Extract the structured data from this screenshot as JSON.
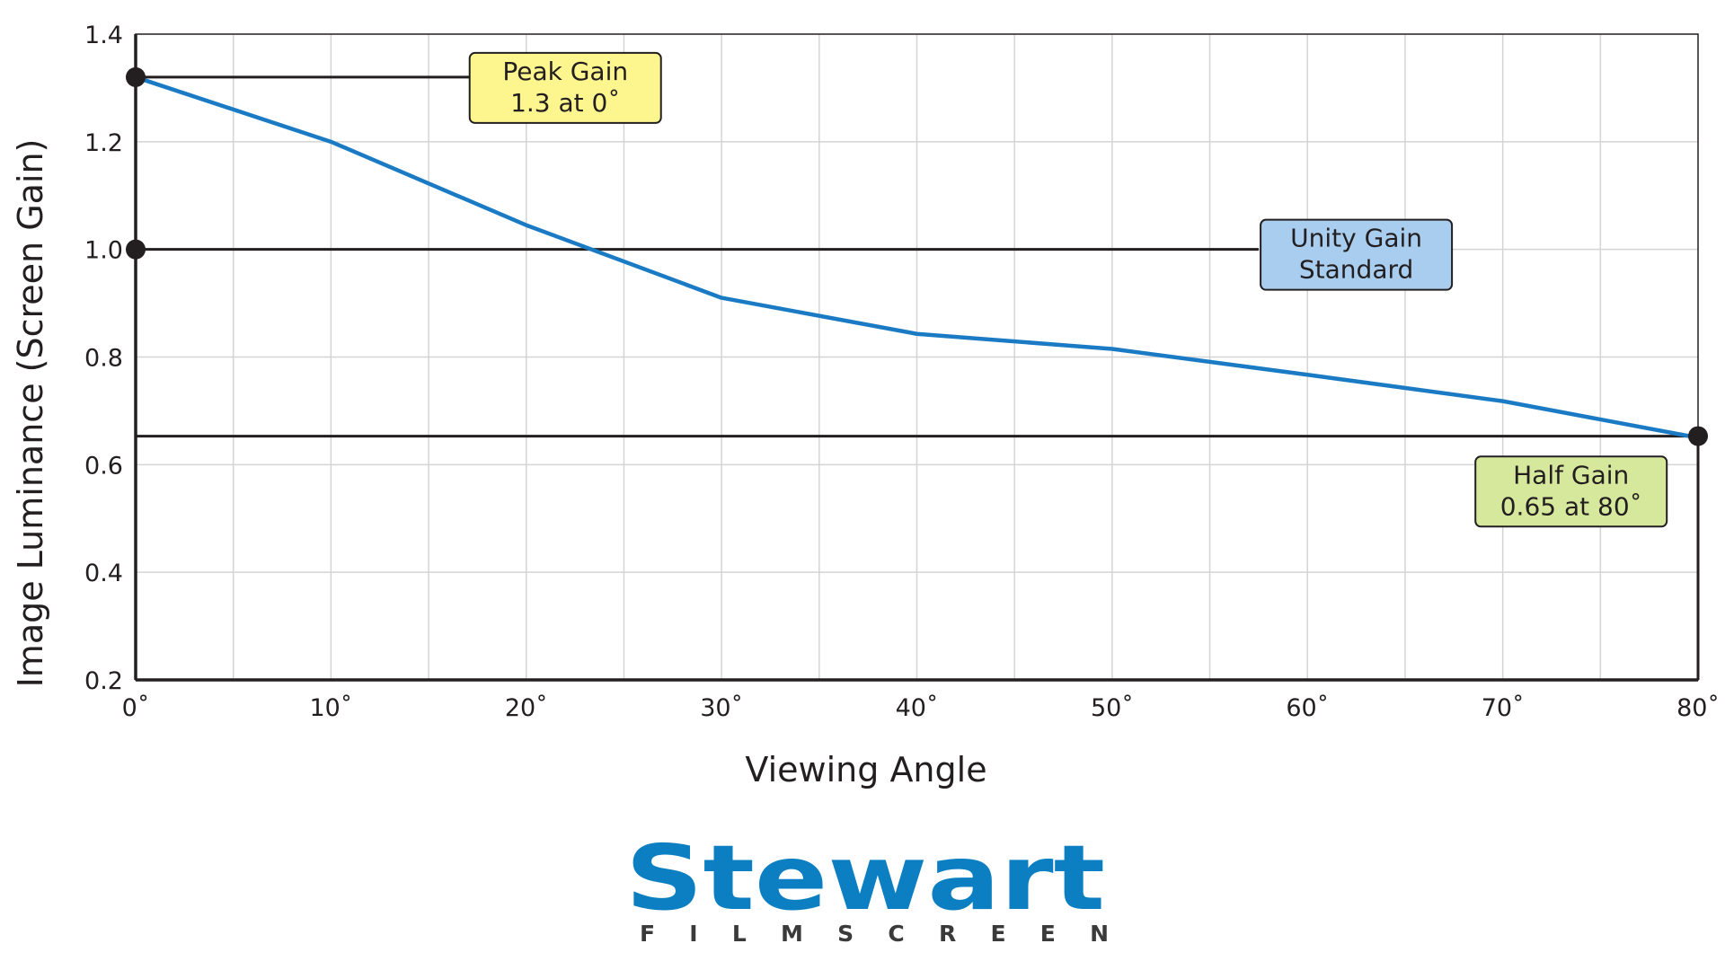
{
  "chart_data": {
    "type": "line",
    "xlabel": "Viewing Angle",
    "ylabel": "Image Luminance (Screen Gain)",
    "xlim": [
      0,
      80
    ],
    "ylim": [
      0.2,
      1.4
    ],
    "x_ticks": [
      {
        "value": 0,
        "label": "0˚"
      },
      {
        "value": 10,
        "label": "10˚"
      },
      {
        "value": 20,
        "label": "20˚"
      },
      {
        "value": 30,
        "label": "30˚"
      },
      {
        "value": 40,
        "label": "40˚"
      },
      {
        "value": 50,
        "label": "50˚"
      },
      {
        "value": 60,
        "label": "60˚"
      },
      {
        "value": 70,
        "label": "70˚"
      },
      {
        "value": 80,
        "label": "80˚"
      }
    ],
    "y_ticks": [
      {
        "value": 0.2,
        "label": "0.2"
      },
      {
        "value": 0.4,
        "label": "0.4"
      },
      {
        "value": 0.6,
        "label": "0.6"
      },
      {
        "value": 0.8,
        "label": "0.8"
      },
      {
        "value": 1.0,
        "label": "1.0"
      },
      {
        "value": 1.2,
        "label": "1.2"
      },
      {
        "value": 1.4,
        "label": "1.4"
      }
    ],
    "grid": true,
    "minor_x_gridlines": true,
    "legend": "none",
    "series": [
      {
        "x": [
          0,
          10,
          20,
          30,
          40,
          50,
          60,
          70,
          80
        ],
        "y": [
          1.32,
          1.2,
          1.045,
          0.91,
          0.843,
          0.815,
          0.767,
          0.718,
          0.65
        ],
        "color": "#1a7bc4"
      }
    ],
    "reference_lines": [
      {
        "y": 1.32,
        "x_from": 0,
        "x_to": 17.5,
        "color": "#231f20"
      },
      {
        "y": 1.0,
        "x_from": 0,
        "x_to": 57.5,
        "color": "#231f20"
      },
      {
        "y": 0.653,
        "x_from": 0,
        "x_to": 80,
        "color": "#231f20"
      },
      {
        "x": 80,
        "y_from": 0.2,
        "y_to": 0.653,
        "color": "#231f20"
      }
    ],
    "markers": [
      {
        "x": 0,
        "y": 1.32
      },
      {
        "x": 0,
        "y": 1.0
      },
      {
        "x": 80,
        "y": 0.653
      }
    ],
    "annotations": [
      {
        "lines": [
          "Peak Gain",
          "1.3 at 0˚"
        ],
        "anchor_x": 22,
        "anchor_y": 1.3,
        "fill": "#fdf68f"
      },
      {
        "lines": [
          "Unity Gain",
          "Standard"
        ],
        "anchor_x": 62.5,
        "anchor_y": 0.99,
        "fill": "#a9cdef"
      },
      {
        "lines": [
          "Half Gain",
          "0.65 at 80˚"
        ],
        "anchor_x": 73.5,
        "anchor_y": 0.55,
        "fill": "#d6e89c"
      }
    ]
  },
  "logo": {
    "name": "Stewart",
    "tagline": "FILMSCREEN"
  }
}
